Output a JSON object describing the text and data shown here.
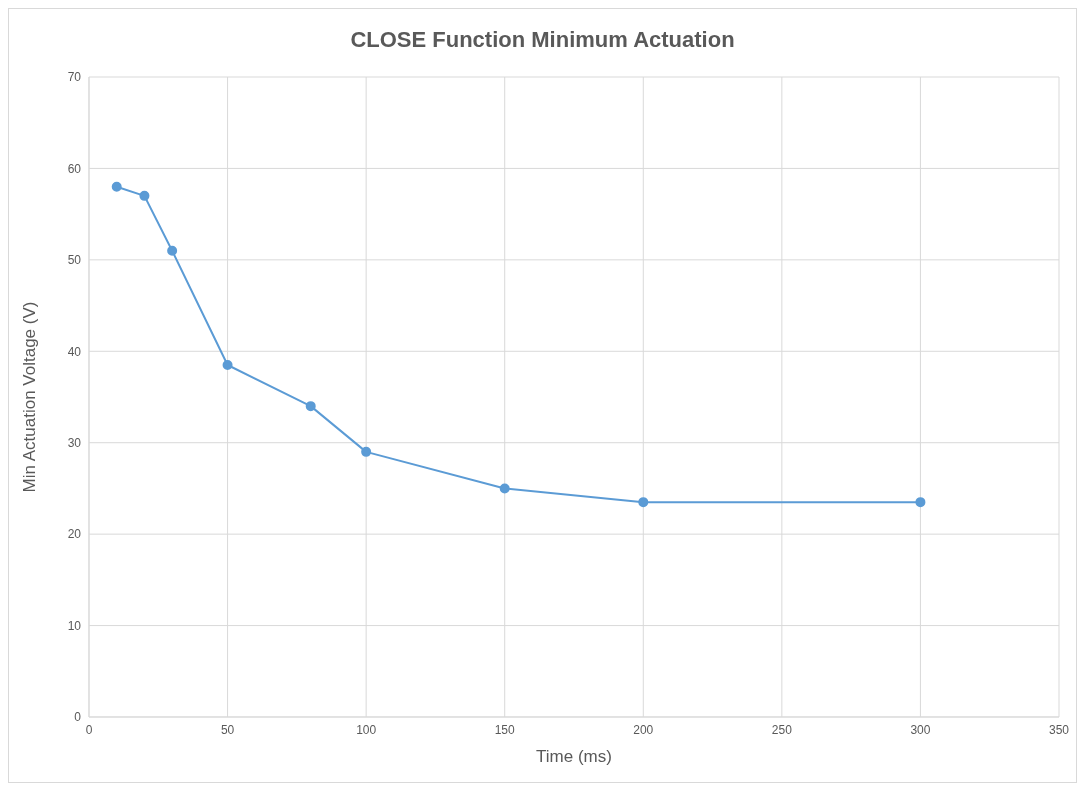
{
  "chart_data": {
    "type": "line",
    "title": "CLOSE Function Minimum Actuation",
    "xlabel": "Time (ms)",
    "ylabel": "Min Actuation Voltage (V)",
    "x": [
      10,
      20,
      30,
      50,
      80,
      100,
      150,
      200,
      300
    ],
    "series": [
      {
        "color": "#5b9bd5",
        "values": [
          58,
          57,
          51,
          38.5,
          34,
          29,
          25,
          23.5,
          23.5
        ]
      }
    ],
    "xlim": [
      0,
      350
    ],
    "xticks": [
      0,
      50,
      100,
      150,
      200,
      250,
      300,
      350
    ],
    "ylim": [
      0,
      70
    ],
    "yticks": [
      0,
      10,
      20,
      30,
      40,
      50,
      60,
      70
    ],
    "grid": true,
    "marker": "circle",
    "line_style": "solid",
    "legend": false
  }
}
